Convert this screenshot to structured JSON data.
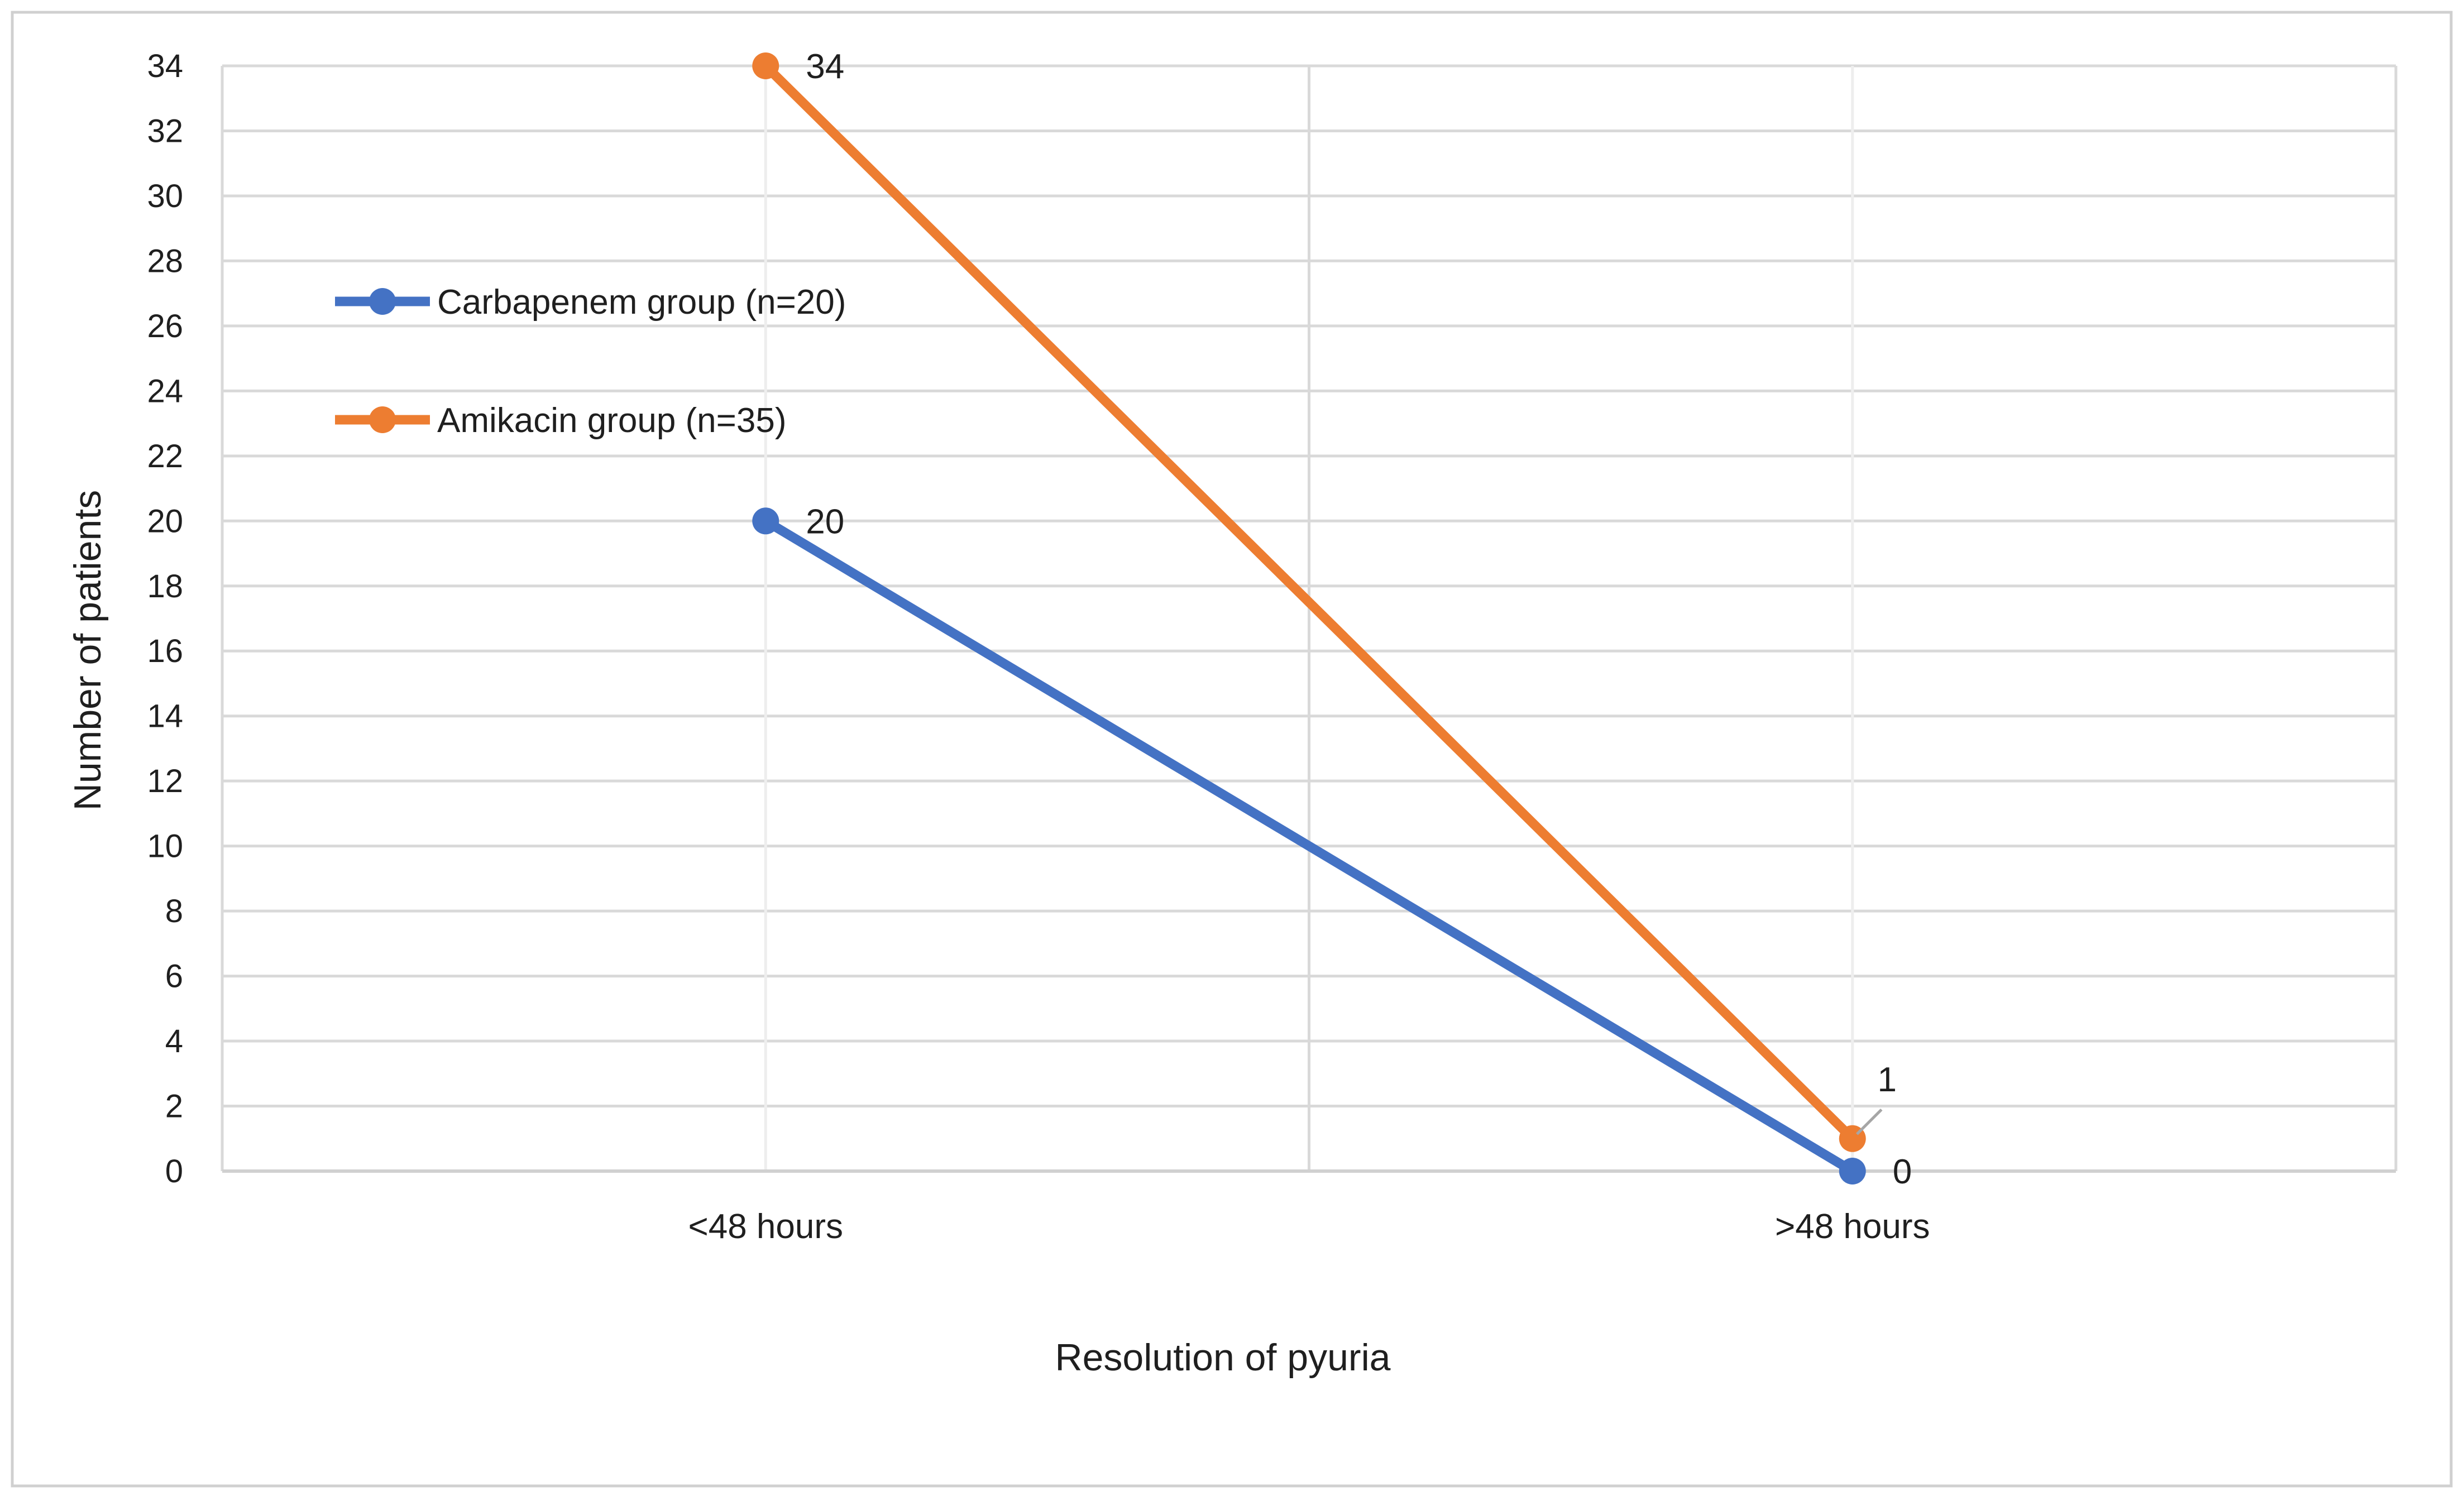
{
  "chart_data": {
    "type": "line",
    "title": "",
    "categories": [
      "<48 hours",
      ">48 hours"
    ],
    "series": [
      {
        "name": "Carbapenem group (n=20)",
        "color": "#4472C4",
        "values": [
          20,
          0
        ],
        "data_labels": [
          "20",
          "0"
        ]
      },
      {
        "name": "Amikacin group (n=35)",
        "color": "#ED7D31",
        "values": [
          34,
          1
        ],
        "data_labels": [
          "34",
          "1"
        ]
      }
    ],
    "xlabel": "Resolution of pyuria",
    "ylabel": "Number of patients",
    "ylim": [
      0,
      34
    ],
    "yticks": [
      "0",
      "2",
      "4",
      "6",
      "8",
      "10",
      "12",
      "14",
      "16",
      "18",
      "20",
      "22",
      "24",
      "26",
      "28",
      "30",
      "32",
      "34"
    ],
    "grid": true,
    "legend_position": "upper-left inside plot"
  }
}
